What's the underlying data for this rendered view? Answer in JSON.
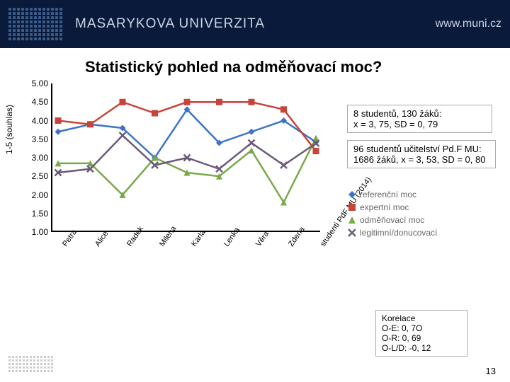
{
  "header": {
    "uni": "MASARYKOVA UNIVERZITA",
    "url": "www.muni.cz"
  },
  "title": "Statistický pohled na odměňovací moc?",
  "yaxis_label": "1-5 (souhlas)",
  "chart": {
    "type": "line",
    "ylim": [
      1.0,
      5.0
    ],
    "ytick_step": 0.5,
    "yticks": [
      "5.00",
      "4.50",
      "4.00",
      "3.50",
      "3.00",
      "2.50",
      "2.00",
      "1.50",
      "1.00"
    ],
    "categories": [
      "Petra",
      "Alice",
      "Radek",
      "Milena",
      "Karla",
      "Lenka",
      "Věra",
      "Zdena",
      "studenti PdF MU (2014)"
    ],
    "series": [
      {
        "name": "referenční moc",
        "color": "#3d74c7",
        "marker": "diamond",
        "values": [
          3.7,
          3.9,
          3.8,
          3.0,
          4.3,
          3.4,
          3.7,
          4.0,
          3.42
        ]
      },
      {
        "name": "expertní moc",
        "color": "#c64438",
        "marker": "square",
        "values": [
          4.0,
          3.9,
          4.5,
          4.2,
          4.5,
          4.5,
          4.5,
          4.3,
          3.18
        ]
      },
      {
        "name": "odměňovací moc",
        "color": "#7aa94a",
        "marker": "triangle",
        "values": [
          2.85,
          2.85,
          2.0,
          3.0,
          2.6,
          2.5,
          3.2,
          1.8,
          3.53
        ]
      },
      {
        "name": "legitimní/donucovací",
        "color": "#6a5a78",
        "marker": "x",
        "values": [
          2.6,
          2.7,
          3.6,
          2.8,
          3.0,
          2.7,
          3.4,
          2.8,
          3.39
        ]
      }
    ],
    "line_width": 2.5,
    "marker_size": 9,
    "grid_color": "#e0e0e0",
    "background_color": "#ffffff"
  },
  "box1": {
    "l1": "8 studentů, 130 žáků:",
    "l2": "x = 3, 75, SD = 0, 79"
  },
  "box2": {
    "l1": "96 studentů učitelství Pd.F MU:",
    "l2": "1686 žáků, x = 3, 53, SD = 0, 80"
  },
  "legend_title": "",
  "box3": {
    "t": "Korelace",
    "a": "O-E: 0, 7O",
    "b": "O-R: 0, 69",
    "c": "O-L/D: -0, 12"
  },
  "page": "13"
}
